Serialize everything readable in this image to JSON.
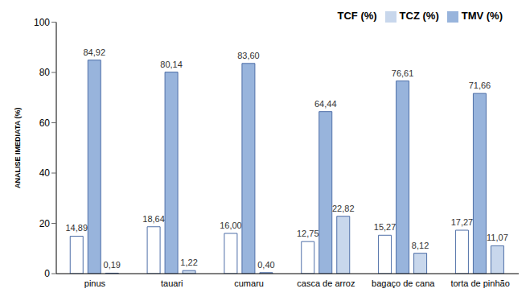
{
  "chart_data": {
    "type": "bar",
    "y_label": "ANALISE IMEDIATA (%)",
    "categories": [
      "pinus",
      "tauari",
      "cumaru",
      "casca de arroz",
      "bagaço de cana",
      "torta de pinhão"
    ],
    "series": [
      {
        "name": "TCF (%)",
        "color": "#ffffff",
        "values": [
          14.89,
          18.64,
          16.0,
          12.75,
          15.27,
          17.27
        ],
        "value_labels": [
          "14,89",
          "18,64",
          "16,00",
          "12,75",
          "15,27",
          "17,27"
        ]
      },
      {
        "name": "TMV (%)",
        "color": "#98b4dc",
        "values": [
          84.92,
          80.14,
          83.6,
          64.44,
          76.61,
          71.66
        ],
        "value_labels": [
          "84,92",
          "80,14",
          "83,60",
          "64,44",
          "76,61",
          "71,66"
        ]
      },
      {
        "name": "TCZ (%)",
        "color": "#c8d7ec",
        "values": [
          0.19,
          1.22,
          0.4,
          22.82,
          8.12,
          11.07
        ],
        "value_labels": [
          "0,19",
          "1,22",
          "0,40",
          "22,82",
          "8,12",
          "11,07"
        ]
      }
    ],
    "ylim": [
      0,
      100
    ],
    "yticks": [
      0,
      20,
      40,
      60,
      80,
      100
    ],
    "grid": false,
    "legend": "upper right",
    "data_labels": true
  }
}
